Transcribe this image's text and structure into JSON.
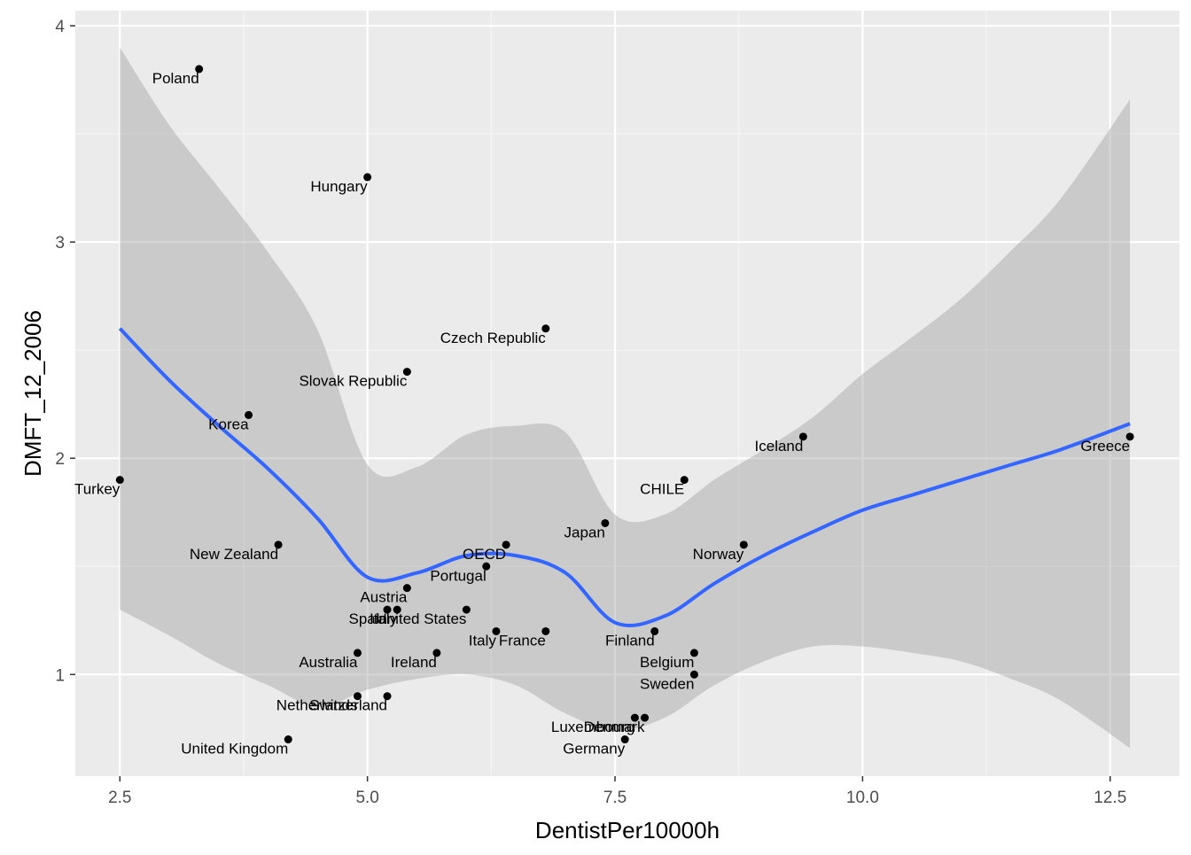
{
  "chart_data": {
    "type": "scatter",
    "title": "",
    "xlabel": "DentistPer10000h",
    "ylabel": "DMFT_12_2006",
    "xlim": [
      2.05,
      13.2
    ],
    "ylim": [
      0.53,
      4.07
    ],
    "x_ticks": [
      2.5,
      5.0,
      7.5,
      10.0,
      12.5
    ],
    "x_tick_labels": [
      "2.5",
      "5.0",
      "7.5",
      "10.0",
      "12.5"
    ],
    "y_ticks": [
      1,
      2,
      3,
      4
    ],
    "y_tick_labels": [
      "1",
      "2",
      "3",
      "4"
    ],
    "grid": true,
    "legend": "none",
    "colors": {
      "panel_background": "#ebebeb",
      "grid_major": "#ffffff",
      "grid_minor": "#f5f5f5",
      "point": "#000000",
      "smooth_line": "#3366ff",
      "confidence_band": "#999999"
    },
    "points": [
      {
        "label": "Poland",
        "x": 3.3,
        "y": 3.8
      },
      {
        "label": "Hungary",
        "x": 5.0,
        "y": 3.3
      },
      {
        "label": "Czech Republic",
        "x": 6.8,
        "y": 2.6
      },
      {
        "label": "Slovak Republic",
        "x": 5.4,
        "y": 2.4
      },
      {
        "label": "Korea",
        "x": 3.8,
        "y": 2.2
      },
      {
        "label": "Iceland",
        "x": 9.4,
        "y": 2.1
      },
      {
        "label": "Greece",
        "x": 12.7,
        "y": 2.1
      },
      {
        "label": "Turkey",
        "x": 2.5,
        "y": 1.9
      },
      {
        "label": "CHILE",
        "x": 8.2,
        "y": 1.9
      },
      {
        "label": "Japan",
        "x": 7.4,
        "y": 1.7
      },
      {
        "label": "New Zealand",
        "x": 4.1,
        "y": 1.6
      },
      {
        "label": "OECD",
        "x": 6.4,
        "y": 1.6
      },
      {
        "label": "Norway",
        "x": 8.8,
        "y": 1.6
      },
      {
        "label": "Portugal",
        "x": 6.2,
        "y": 1.5
      },
      {
        "label": "Austria",
        "x": 5.4,
        "y": 1.4
      },
      {
        "label": "Spain",
        "x": 5.2,
        "y": 1.3
      },
      {
        "label": "Italy",
        "x": 5.3,
        "y": 1.3
      },
      {
        "label": "United States",
        "x": 6.0,
        "y": 1.3
      },
      {
        "label": "Italy",
        "x": 6.3,
        "y": 1.2
      },
      {
        "label": "France",
        "x": 6.8,
        "y": 1.2
      },
      {
        "label": "Finland",
        "x": 7.9,
        "y": 1.2
      },
      {
        "label": "Australia",
        "x": 4.9,
        "y": 1.1
      },
      {
        "label": "Ireland",
        "x": 5.7,
        "y": 1.1
      },
      {
        "label": "Belgium",
        "x": 8.3,
        "y": 1.1
      },
      {
        "label": "Sweden",
        "x": 8.3,
        "y": 1.0
      },
      {
        "label": "Netherlands",
        "x": 4.9,
        "y": 0.9
      },
      {
        "label": "Switzerland",
        "x": 5.2,
        "y": 0.9
      },
      {
        "label": "Luxembourg",
        "x": 7.7,
        "y": 0.8
      },
      {
        "label": "Denmark",
        "x": 7.8,
        "y": 0.8
      },
      {
        "label": "United Kingdom",
        "x": 4.2,
        "y": 0.7
      },
      {
        "label": "Germany",
        "x": 7.6,
        "y": 0.7
      }
    ],
    "smooth": {
      "method": "loess",
      "x": [
        2.5,
        3.0,
        3.5,
        4.0,
        4.5,
        5.0,
        5.5,
        6.0,
        6.5,
        7.0,
        7.5,
        8.0,
        8.5,
        9.0,
        9.5,
        10.0,
        10.5,
        11.0,
        11.5,
        12.0,
        12.7
      ],
      "y": [
        2.6,
        2.36,
        2.15,
        1.95,
        1.72,
        1.45,
        1.47,
        1.55,
        1.55,
        1.47,
        1.24,
        1.27,
        1.42,
        1.55,
        1.66,
        1.76,
        1.83,
        1.9,
        1.97,
        2.04,
        2.16
      ],
      "lower": [
        1.3,
        1.18,
        1.05,
        0.95,
        0.85,
        0.93,
        0.98,
        1.0,
        0.95,
        0.82,
        0.74,
        0.8,
        0.95,
        1.06,
        1.13,
        1.13,
        1.1,
        1.06,
        0.98,
        0.88,
        0.66
      ],
      "upper": [
        3.9,
        3.54,
        3.25,
        2.95,
        2.59,
        1.97,
        1.96,
        2.11,
        2.15,
        2.12,
        1.74,
        1.74,
        1.9,
        2.04,
        2.19,
        2.39,
        2.56,
        2.74,
        2.96,
        3.2,
        3.66
      ]
    }
  }
}
